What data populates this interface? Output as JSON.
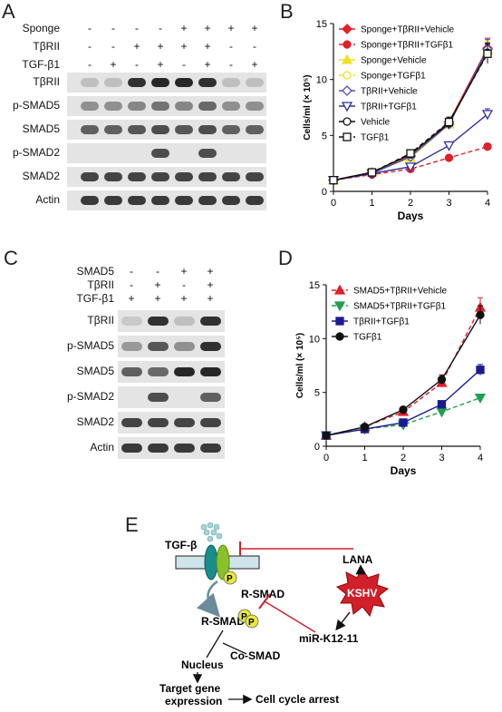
{
  "panels": {
    "a": "A",
    "b": "B",
    "c": "C",
    "d": "D",
    "e": "E"
  },
  "panel_a": {
    "treatments": [
      {
        "label": "Sponge",
        "signs": [
          "-",
          "-",
          "-",
          "-",
          "+",
          "+",
          "+",
          "+"
        ]
      },
      {
        "label": "TβRII",
        "signs": [
          "-",
          "-",
          "+",
          "+",
          "+",
          "+",
          "-",
          "-"
        ]
      },
      {
        "label": "TGF-β1",
        "signs": [
          "-",
          "+",
          "-",
          "+",
          "-",
          "+",
          "-",
          "+"
        ]
      }
    ],
    "blots": [
      "TβRII",
      "p-SMAD5",
      "SMAD5",
      "p-SMAD2",
      "SMAD2",
      "Actin"
    ]
  },
  "panel_c": {
    "treatments": [
      {
        "label": "SMAD5",
        "signs": [
          "-",
          "-",
          "+",
          "+"
        ]
      },
      {
        "label": "TβRII",
        "signs": [
          "-",
          "+",
          "-",
          "+"
        ]
      },
      {
        "label": "TGF-β1",
        "signs": [
          "+",
          "+",
          "+",
          "+"
        ]
      }
    ],
    "blots": [
      "TβRII",
      "p-SMAD5",
      "SMAD5",
      "p-SMAD2",
      "SMAD2",
      "Actin"
    ]
  },
  "chart_data": [
    {
      "type": "line",
      "xlabel": "Days",
      "ylabel": "Cells/ml (× 10⁵)",
      "x": [
        0,
        1,
        2,
        3,
        4
      ],
      "xlim": [
        0,
        4
      ],
      "ylim": [
        0,
        15
      ],
      "yticks": [
        0,
        5,
        10,
        15
      ],
      "legend_position": "top-left",
      "series": [
        {
          "name": "Sponge+TβRII+Vehicle",
          "values": [
            1,
            1.7,
            3.2,
            6.2,
            12.8
          ],
          "color": "#e0202a",
          "marker": "diamond",
          "dash": "none"
        },
        {
          "name": "Sponge+TβRII+TGFβ1",
          "values": [
            1,
            1.5,
            2.0,
            3.0,
            4.0
          ],
          "color": "#e0202a",
          "marker": "circle",
          "dash": "5,3"
        },
        {
          "name": "Sponge+Vehicle",
          "values": [
            1,
            1.7,
            3.0,
            6.0,
            12.6
          ],
          "color": "#f0e020",
          "marker": "triangle",
          "dash": "none"
        },
        {
          "name": "Sponge+TGFβ1",
          "values": [
            1,
            1.7,
            3.1,
            6.1,
            12.5
          ],
          "color": "#f0e020",
          "marker": "circle-open",
          "dash": "5,3"
        },
        {
          "name": "TβRII+Vehicle",
          "values": [
            1,
            1.6,
            3.1,
            6.0,
            12.7
          ],
          "color": "#5050b0",
          "marker": "diamond-open",
          "dash": "none"
        },
        {
          "name": "TβRII+TGFβ1",
          "values": [
            1,
            1.6,
            2.2,
            4.1,
            6.9
          ],
          "color": "#3030a0",
          "marker": "triangle-down-open",
          "dash": "none"
        },
        {
          "name": "Vehicle",
          "values": [
            1,
            1.7,
            3.3,
            6.1,
            12.4
          ],
          "color": "#111111",
          "marker": "circle-open",
          "dash": "none"
        },
        {
          "name": "TGFβ1",
          "values": [
            1,
            1.7,
            3.4,
            6.2,
            12.3
          ],
          "color": "#111111",
          "marker": "square-open",
          "dash": "5,3"
        }
      ]
    },
    {
      "type": "line",
      "xlabel": "Days",
      "ylabel": "Cells/ml (× 10⁵)",
      "x": [
        0,
        1,
        2,
        3,
        4
      ],
      "xlim": [
        0,
        4
      ],
      "ylim": [
        0,
        15
      ],
      "yticks": [
        0,
        5,
        10,
        15
      ],
      "legend_position": "top-left",
      "series": [
        {
          "name": "SMAD5+TβRII+Vehicle",
          "values": [
            1,
            1.8,
            3.2,
            5.9,
            12.9
          ],
          "color": "#e0202a",
          "marker": "triangle",
          "dash": "5,3"
        },
        {
          "name": "SMAD5+TβRII+TGFβ1",
          "values": [
            1,
            1.6,
            2.0,
            3.2,
            4.5
          ],
          "color": "#20a050",
          "marker": "triangle-down",
          "dash": "5,3"
        },
        {
          "name": "TβRII+TGFβ1",
          "values": [
            1,
            1.6,
            2.2,
            3.9,
            7.1
          ],
          "color": "#1a1a90",
          "marker": "square",
          "dash": "none"
        },
        {
          "name": "TGFβ1",
          "values": [
            1,
            1.8,
            3.4,
            6.2,
            12.2
          ],
          "color": "#111111",
          "marker": "circle",
          "dash": "none"
        }
      ]
    }
  ],
  "panel_e": {
    "ligand": "TGF-β",
    "lana": "LANA",
    "kshv": "KSHV",
    "rsmad_top": "R-SMAD",
    "rsmad_bottom": "R-SMAD",
    "p1": "P",
    "p2": "P",
    "p3": "P",
    "mirna": "miR-K12-11",
    "cosmad": "Co-SMAD",
    "nucleus": "Nucleus",
    "target1": "Target gene",
    "target2": "expression",
    "arrest": "Cell cycle arrest"
  }
}
